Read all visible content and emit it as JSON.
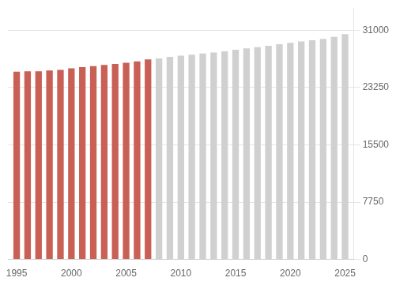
{
  "chart_data": {
    "type": "bar",
    "x": [
      1995,
      1996,
      1997,
      1998,
      1999,
      2000,
      2001,
      2002,
      2003,
      2004,
      2005,
      2006,
      2007,
      2008,
      2009,
      2010,
      2011,
      2012,
      2013,
      2014,
      2015,
      2016,
      2017,
      2018,
      2019,
      2020,
      2021,
      2022,
      2023,
      2024,
      2025
    ],
    "values": [
      25400,
      25450,
      25450,
      25550,
      25650,
      25850,
      26000,
      26150,
      26300,
      26450,
      26600,
      26800,
      27050,
      27200,
      27400,
      27550,
      27700,
      27850,
      28000,
      28150,
      28350,
      28550,
      28700,
      28900,
      29100,
      29300,
      29480,
      29650,
      29820,
      30100,
      30480
    ],
    "colors": [
      "#c96055",
      "#c96055",
      "#c96055",
      "#c96055",
      "#c96055",
      "#c96055",
      "#c96055",
      "#c96055",
      "#c96055",
      "#c96055",
      "#c96055",
      "#c96055",
      "#c96055",
      "#d0d0d0",
      "#d0d0d0",
      "#d0d0d0",
      "#d0d0d0",
      "#d0d0d0",
      "#d0d0d0",
      "#d0d0d0",
      "#d0d0d0",
      "#d0d0d0",
      "#d0d0d0",
      "#d0d0d0",
      "#d0d0d0",
      "#d0d0d0",
      "#d0d0d0",
      "#d0d0d0",
      "#d0d0d0",
      "#d0d0d0",
      "#d0d0d0"
    ],
    "xlim": [
      1994.2,
      2025.8
    ],
    "xticks": [
      1995,
      2000,
      2005,
      2010,
      2015,
      2020,
      2025
    ],
    "ylim": [
      0,
      34000
    ],
    "yticks": [
      0,
      7750,
      15500,
      23250,
      31000
    ],
    "grid": true
  }
}
